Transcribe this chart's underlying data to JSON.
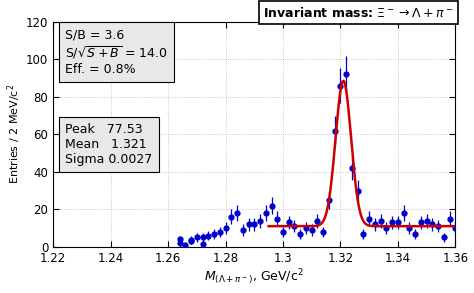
{
  "title": "Invariant mass: $\\Xi^- \\rightarrow \\Lambda + \\pi^-$",
  "xlabel": "$M_{(\\Lambda+\\pi^-)}$, GeV/c$^2$",
  "ylabel": "Entries / 2 MeV/c$^2$",
  "xlim": [
    1.22,
    1.36
  ],
  "ylim": [
    0,
    120
  ],
  "xticks": [
    1.22,
    1.24,
    1.26,
    1.28,
    1.3,
    1.32,
    1.34,
    1.36
  ],
  "yticks": [
    0,
    20,
    40,
    60,
    80,
    100,
    120
  ],
  "peak": 77.53,
  "mean": 1.321,
  "sigma": 0.0027,
  "background": 11.0,
  "bin_width": 0.002,
  "stat_box1_lines": [
    "S/B = 3.6",
    "S/$\\sqrt{S+B}$ = 14.0",
    "Eff. = 0.8%"
  ],
  "stat_box2_lines": [
    "Peak   77.53",
    "Mean   1.321",
    "Sigma 0.0027"
  ],
  "data_color": "#0000CC",
  "fit_color": "#CC0000",
  "grid_color": "#BBBBBB",
  "bg_color": "#FFFFFF",
  "stats_box_facecolor": "#E8E8E8"
}
